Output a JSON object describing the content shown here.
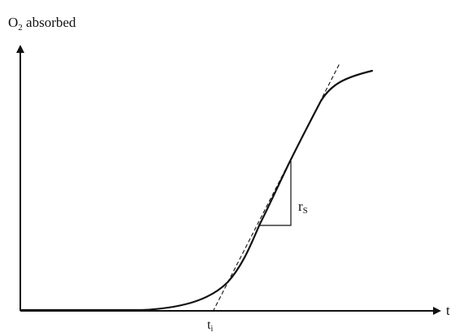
{
  "diagram": {
    "y_axis_label": "O",
    "y_axis_label_subscript": "2",
    "y_axis_label_rest": " absorbed",
    "x_axis_label": "t",
    "tangent_intercept_label": "t",
    "tangent_intercept_label_subscript": "i",
    "slope_label": "r",
    "slope_label_subscript": "S"
  },
  "colors": {
    "ink": "#111111",
    "background": "#ffffff"
  }
}
